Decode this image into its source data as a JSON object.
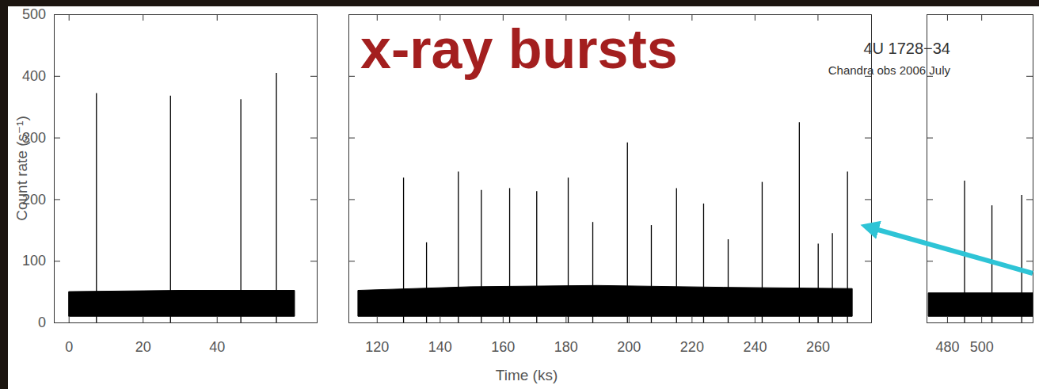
{
  "slide": {
    "title": "x-ray bursts"
  },
  "chart_data": [
    {
      "type": "line",
      "color": "#000000",
      "ylabel": "Count rate (s⁻¹)",
      "xlim": [
        -4,
        67
      ],
      "xticks": [
        0,
        20,
        40
      ],
      "ylim": [
        0,
        500
      ],
      "yticks": [
        0,
        100,
        200,
        300,
        400,
        500
      ],
      "x": [
        7.5,
        27.5,
        46.5,
        56.1
      ],
      "values": [
        372,
        368,
        362,
        405
      ],
      "persistent": {
        "x": [
          0,
          30,
          61
        ],
        "low": [
          10,
          10,
          10
        ],
        "high": [
          50,
          52,
          52
        ]
      }
    },
    {
      "type": "line",
      "color": "#000000",
      "xlabel": "Time (ks)",
      "tick_labels": "x",
      "annotations": [
        "4U 1728−34",
        "Chandra obs 2006 July"
      ],
      "xlim": [
        111,
        277
      ],
      "xticks": [
        120,
        140,
        160,
        180,
        200,
        220,
        240,
        260
      ],
      "ylim": [
        0,
        500
      ],
      "yticks": [
        0,
        100,
        200,
        300,
        400,
        500
      ],
      "x": [
        128.5,
        135.8,
        145.9,
        153.2,
        162.2,
        170.8,
        180.8,
        188.6,
        199.6,
        207.2,
        215.2,
        223.8,
        231.6,
        242.4,
        254.2,
        260.2,
        264.7,
        269.5
      ],
      "values": [
        235,
        130,
        245,
        215,
        218,
        213,
        235,
        163,
        292,
        158,
        218,
        193,
        135,
        228,
        325,
        128,
        145,
        245
      ],
      "persistent": {
        "x": [
          114,
          150,
          190,
          230,
          271
        ],
        "low": [
          10,
          10,
          10,
          10,
          10
        ],
        "high": [
          52,
          58,
          60,
          57,
          55
        ]
      }
    },
    {
      "type": "line",
      "color": "#000000",
      "tick_labels": "x",
      "xlim": [
        468,
        530
      ],
      "xticks": [
        480,
        500
      ],
      "ylim": [
        0,
        500
      ],
      "yticks": [
        0,
        100,
        200,
        300,
        400,
        500
      ],
      "x": [
        490.2,
        506.2,
        523.6
      ],
      "values": [
        230,
        190,
        207
      ],
      "persistent": {
        "x": [
          469,
          530
        ],
        "low": [
          10,
          10
        ],
        "high": [
          48,
          48
        ]
      }
    }
  ]
}
